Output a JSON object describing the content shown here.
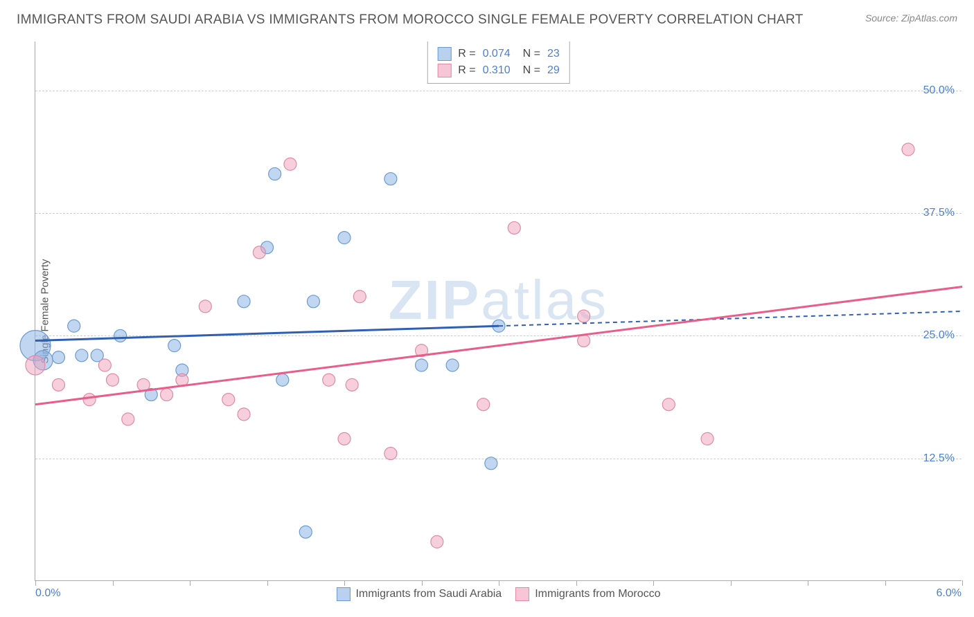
{
  "title": "IMMIGRANTS FROM SAUDI ARABIA VS IMMIGRANTS FROM MOROCCO SINGLE FEMALE POVERTY CORRELATION CHART",
  "source": "Source: ZipAtlas.com",
  "y_axis_label": "Single Female Poverty",
  "watermark": "ZIPatlas",
  "chart": {
    "type": "scatter",
    "background_color": "#ffffff",
    "grid_color": "#cccccc",
    "axis_color": "#aaaaaa",
    "label_color": "#4b7fd1",
    "xlim": [
      0.0,
      6.0
    ],
    "ylim": [
      0.0,
      55.0
    ],
    "x_ticks": [
      0.0,
      0.5,
      1.0,
      1.5,
      2.0,
      2.5,
      3.0,
      3.5,
      4.0,
      4.5,
      5.0,
      5.5,
      6.0
    ],
    "x_tick_labels": {
      "0": "0.0%",
      "12": "6.0%"
    },
    "y_gridlines": [
      12.5,
      25.0,
      37.5,
      50.0
    ],
    "y_tick_labels": [
      "12.5%",
      "25.0%",
      "37.5%",
      "50.0%"
    ],
    "series": [
      {
        "name": "Immigrants from Saudi Arabia",
        "color_fill": "rgba(140,180,230,0.55)",
        "color_stroke": "#6b9bd1",
        "swatch_fill": "#b9d0ee",
        "swatch_border": "#6b9bd1",
        "regression_color": "#2f5fb5",
        "regression_solid_until_x": 3.0,
        "regression": {
          "y_at_xmin": 24.5,
          "y_at_xmax": 27.5
        },
        "stats": {
          "R": "0.074",
          "N": "23"
        },
        "marker_radius": 9,
        "points": [
          {
            "x": 0.0,
            "y": 24.0,
            "r": 22
          },
          {
            "x": 0.05,
            "y": 22.5,
            "r": 14
          },
          {
            "x": 0.15,
            "y": 22.8
          },
          {
            "x": 0.25,
            "y": 26.0
          },
          {
            "x": 0.3,
            "y": 23.0
          },
          {
            "x": 0.4,
            "y": 23.0
          },
          {
            "x": 0.55,
            "y": 25.0
          },
          {
            "x": 0.75,
            "y": 19.0
          },
          {
            "x": 0.9,
            "y": 24.0
          },
          {
            "x": 0.95,
            "y": 21.5
          },
          {
            "x": 1.35,
            "y": 28.5
          },
          {
            "x": 1.5,
            "y": 34.0
          },
          {
            "x": 1.55,
            "y": 41.5
          },
          {
            "x": 1.6,
            "y": 20.5
          },
          {
            "x": 1.75,
            "y": 5.0
          },
          {
            "x": 1.8,
            "y": 28.5
          },
          {
            "x": 2.0,
            "y": 35.0
          },
          {
            "x": 2.3,
            "y": 41.0
          },
          {
            "x": 2.5,
            "y": 22.0
          },
          {
            "x": 2.7,
            "y": 22.0
          },
          {
            "x": 2.95,
            "y": 12.0
          },
          {
            "x": 3.0,
            "y": 26.0
          }
        ]
      },
      {
        "name": "Immigrants from Morocco",
        "color_fill": "rgba(240,160,185,0.5)",
        "color_stroke": "#e08aa5",
        "swatch_fill": "#f7c5d5",
        "swatch_border": "#e08aa5",
        "regression_color": "#e85d8a",
        "regression_solid_until_x": 6.0,
        "regression": {
          "y_at_xmin": 18.0,
          "y_at_xmax": 30.0
        },
        "stats": {
          "R": "0.310",
          "N": "29"
        },
        "marker_radius": 9,
        "points": [
          {
            "x": 0.0,
            "y": 22.0,
            "r": 14
          },
          {
            "x": 0.15,
            "y": 20.0
          },
          {
            "x": 0.35,
            "y": 18.5
          },
          {
            "x": 0.45,
            "y": 22.0
          },
          {
            "x": 0.5,
            "y": 20.5
          },
          {
            "x": 0.6,
            "y": 16.5
          },
          {
            "x": 0.7,
            "y": 20.0
          },
          {
            "x": 0.85,
            "y": 19.0
          },
          {
            "x": 0.95,
            "y": 20.5
          },
          {
            "x": 1.1,
            "y": 28.0
          },
          {
            "x": 1.25,
            "y": 18.5
          },
          {
            "x": 1.35,
            "y": 17.0
          },
          {
            "x": 1.45,
            "y": 33.5
          },
          {
            "x": 1.65,
            "y": 42.5
          },
          {
            "x": 1.9,
            "y": 20.5
          },
          {
            "x": 2.0,
            "y": 14.5
          },
          {
            "x": 2.05,
            "y": 20.0
          },
          {
            "x": 2.1,
            "y": 29.0
          },
          {
            "x": 2.3,
            "y": 13.0
          },
          {
            "x": 2.5,
            "y": 23.5
          },
          {
            "x": 2.6,
            "y": 4.0
          },
          {
            "x": 2.9,
            "y": 18.0
          },
          {
            "x": 3.1,
            "y": 36.0
          },
          {
            "x": 3.55,
            "y": 24.5
          },
          {
            "x": 3.55,
            "y": 27.0
          },
          {
            "x": 4.1,
            "y": 18.0
          },
          {
            "x": 4.35,
            "y": 14.5
          },
          {
            "x": 5.65,
            "y": 44.0
          }
        ]
      }
    ]
  }
}
